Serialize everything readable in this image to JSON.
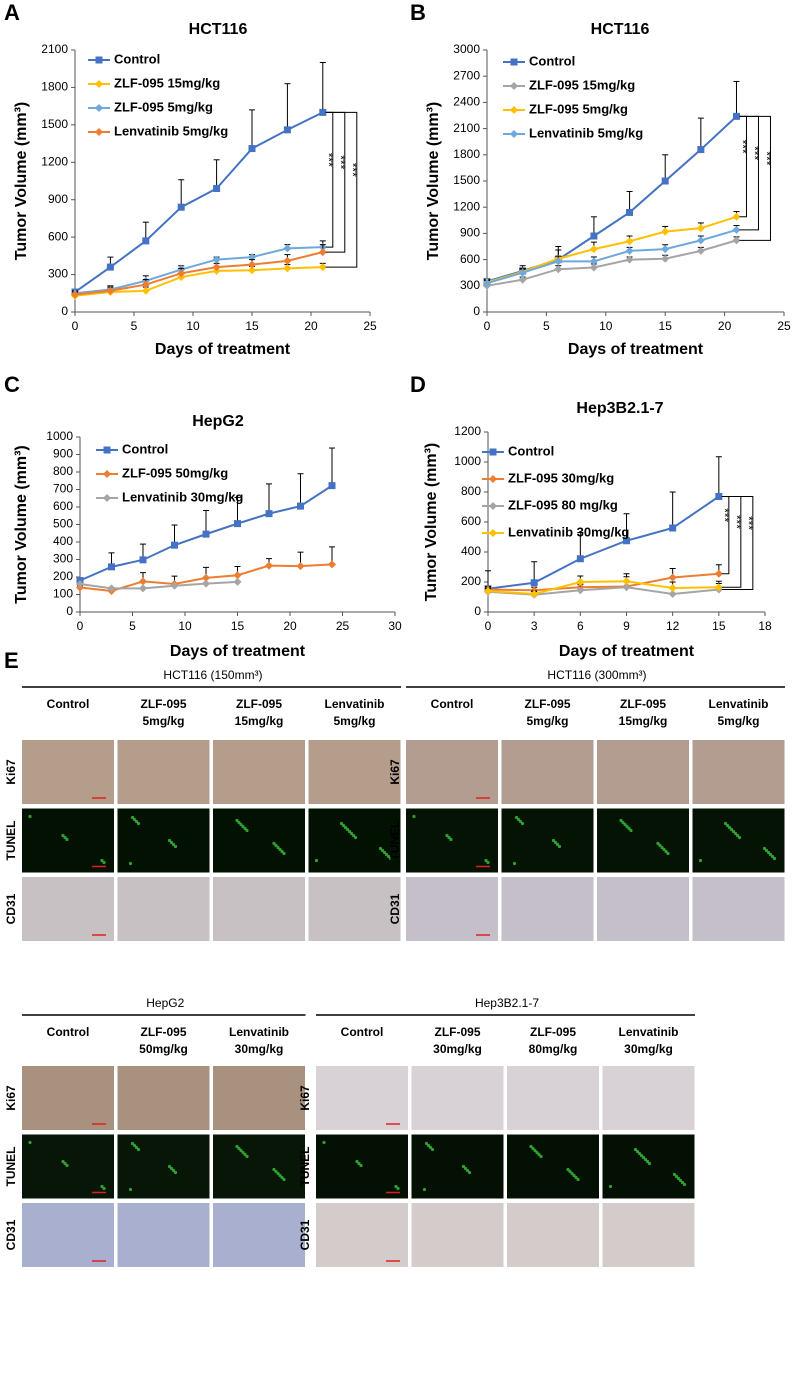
{
  "chart_data": [
    {
      "panel": "A",
      "type": "line",
      "title": "HCT116",
      "x_label": "Days of treatment",
      "y_label": "Tumor Volume (mm³)",
      "x": [
        0,
        3,
        6,
        9,
        12,
        15,
        18,
        21
      ],
      "xlim": [
        0,
        25
      ],
      "xticks": [
        0,
        5,
        10,
        15,
        20,
        25
      ],
      "ylim": [
        0,
        2100
      ],
      "yticks": [
        0,
        300,
        600,
        900,
        1200,
        1500,
        1800,
        2100
      ],
      "series": [
        {
          "name": "Control",
          "color": "#4472c4",
          "values": [
            160,
            360,
            570,
            840,
            990,
            1310,
            1460,
            1600
          ],
          "errors": [
            20,
            80,
            150,
            220,
            230,
            310,
            370,
            400
          ]
        },
        {
          "name": "ZLF-095 15mg/kg",
          "color": "#ffc000",
          "values": [
            130,
            160,
            170,
            280,
            330,
            335,
            350,
            360
          ],
          "errors": [
            20,
            30,
            30,
            30,
            30,
            30,
            30,
            30
          ]
        },
        {
          "name": "ZLF-095 5mg/kg",
          "color": "#6fa8dc",
          "values": [
            150,
            180,
            250,
            340,
            420,
            440,
            510,
            520
          ],
          "errors": [
            20,
            30,
            40,
            30,
            20,
            20,
            30,
            50
          ]
        },
        {
          "name": "Lenvatinib 5mg/kg",
          "color": "#ed7d31",
          "values": [
            140,
            170,
            220,
            310,
            360,
            380,
            410,
            480
          ],
          "errors": [
            20,
            30,
            40,
            40,
            30,
            40,
            50,
            60
          ]
        }
      ],
      "annotations": [
        "***",
        "***",
        "***"
      ]
    },
    {
      "panel": "B",
      "type": "line",
      "title": "HCT116",
      "x_label": "Days of treatment",
      "y_label": "Tumor Volume (mm³)",
      "x": [
        0,
        3,
        6,
        9,
        12,
        15,
        18,
        21
      ],
      "xlim": [
        0,
        25
      ],
      "xticks": [
        0,
        5,
        10,
        15,
        20,
        25
      ],
      "ylim": [
        0,
        3000
      ],
      "yticks": [
        0,
        300,
        600,
        900,
        1200,
        1500,
        1800,
        2100,
        2400,
        2700,
        3000
      ],
      "series": [
        {
          "name": "Control",
          "color": "#4472c4",
          "values": [
            350,
            470,
            600,
            870,
            1140,
            1500,
            1860,
            2240
          ],
          "errors": [
            30,
            60,
            150,
            220,
            240,
            300,
            360,
            400
          ]
        },
        {
          "name": "ZLF-095 15mg/kg",
          "color": "#a5a5a5",
          "values": [
            300,
            370,
            490,
            510,
            600,
            610,
            700,
            820
          ],
          "errors": [
            20,
            30,
            40,
            40,
            30,
            40,
            40,
            40
          ]
        },
        {
          "name": "ZLF-095 5mg/kg",
          "color": "#ffc000",
          "values": [
            340,
            460,
            610,
            720,
            810,
            920,
            960,
            1090
          ],
          "errors": [
            30,
            40,
            100,
            80,
            60,
            60,
            60,
            60
          ]
        },
        {
          "name": "Lenvatinib 5mg/kg",
          "color": "#6fa8dc",
          "values": [
            330,
            450,
            580,
            580,
            700,
            720,
            820,
            940
          ],
          "errors": [
            30,
            40,
            60,
            50,
            40,
            50,
            50,
            50
          ]
        }
      ],
      "annotations": [
        "***",
        "***",
        "***"
      ]
    },
    {
      "panel": "C",
      "type": "line",
      "title": "HepG2",
      "x_label": "Days of treatment",
      "y_label": "Tumor Volume (mm³)",
      "x": [
        0,
        3,
        6,
        9,
        12,
        15,
        18,
        21,
        24
      ],
      "xlim": [
        0,
        30
      ],
      "xticks": [
        0,
        5,
        10,
        15,
        20,
        25,
        30
      ],
      "ylim": [
        0,
        1000
      ],
      "yticks": [
        0,
        100,
        200,
        300,
        400,
        500,
        600,
        700,
        800,
        900,
        1000
      ],
      "series": [
        {
          "name": "Control",
          "color": "#4472c4",
          "values": [
            180,
            258,
            298,
            382,
            445,
            505,
            562,
            605,
            722
          ],
          "errors": [
            10,
            80,
            90,
            115,
            135,
            150,
            170,
            185,
            215
          ]
        },
        {
          "name": "ZLF-095  50mg/kg",
          "color": "#ed7d31",
          "values": [
            140,
            120,
            175,
            160,
            195,
            210,
            265,
            262,
            272
          ],
          "errors": [
            10,
            10,
            50,
            45,
            60,
            50,
            40,
            80,
            100
          ]
        },
        {
          "name": "Lenvatinib 30mg/kg",
          "color": "#a5a5a5",
          "values": [
            160,
            135,
            135,
            150,
            162,
            172,
            null,
            null,
            null
          ]
        }
      ]
    },
    {
      "panel": "D",
      "type": "line",
      "title": "Hep3B2.1-7",
      "x_label": "Days of treatment",
      "y_label": "Tumor Volume (mm³)",
      "x": [
        0,
        3,
        6,
        9,
        12,
        15
      ],
      "xlim": [
        0,
        18
      ],
      "xticks": [
        0,
        3,
        6,
        9,
        12,
        15,
        18
      ],
      "ylim": [
        0,
        1200
      ],
      "yticks": [
        0,
        200,
        400,
        600,
        800,
        1000,
        1200
      ],
      "series": [
        {
          "name": "Control",
          "color": "#4472c4",
          "values": [
            155,
            195,
            355,
            475,
            560,
            770
          ],
          "errors": [
            120,
            140,
            175,
            180,
            240,
            265
          ]
        },
        {
          "name": "ZLF-095 30mg/kg",
          "color": "#ed7d31",
          "values": [
            150,
            145,
            165,
            170,
            230,
            255
          ],
          "errors": [
            20,
            20,
            30,
            30,
            60,
            60
          ]
        },
        {
          "name": "ZLF-095 80 mg/kg",
          "color": "#a5a5a5",
          "values": [
            135,
            115,
            145,
            165,
            120,
            150
          ],
          "errors": [
            20,
            20,
            40,
            70,
            40,
            40
          ]
        },
        {
          "name": "Lenvatinib 30mg/kg",
          "color": "#ffc000",
          "values": [
            140,
            120,
            200,
            205,
            160,
            165
          ],
          "errors": [
            20,
            20,
            40,
            50,
            40,
            40
          ]
        }
      ],
      "annotations": [
        "***",
        "***",
        "***"
      ]
    }
  ],
  "panel_e": {
    "panel": "E",
    "rows": [
      "Ki67",
      "TUNEL",
      "CD31"
    ],
    "groups": [
      {
        "title": "HCT116 (150mm³)",
        "columns": [
          [
            "Control"
          ],
          [
            "ZLF-095",
            "5mg/kg"
          ],
          [
            "ZLF-095",
            "15mg/kg"
          ],
          [
            "Lenvatinib",
            "5mg/kg"
          ]
        ]
      },
      {
        "title": "HCT116 (300mm³)",
        "columns": [
          [
            "Control"
          ],
          [
            "ZLF-095",
            "5mg/kg"
          ],
          [
            "ZLF-095",
            "15mg/kg"
          ],
          [
            "Lenvatinib",
            "5mg/kg"
          ]
        ]
      },
      {
        "title": "HepG2",
        "columns": [
          [
            "Control"
          ],
          [
            "ZLF-095",
            "50mg/kg"
          ],
          [
            "Lenvatinib",
            "30mg/kg"
          ]
        ]
      },
      {
        "title": "Hep3B2.1-7",
        "columns": [
          [
            "Control"
          ],
          [
            "ZLF-095",
            "30mg/kg"
          ],
          [
            "ZLF-095",
            "80mg/kg"
          ],
          [
            "Lenvatinib",
            "30mg/kg"
          ]
        ]
      }
    ]
  }
}
